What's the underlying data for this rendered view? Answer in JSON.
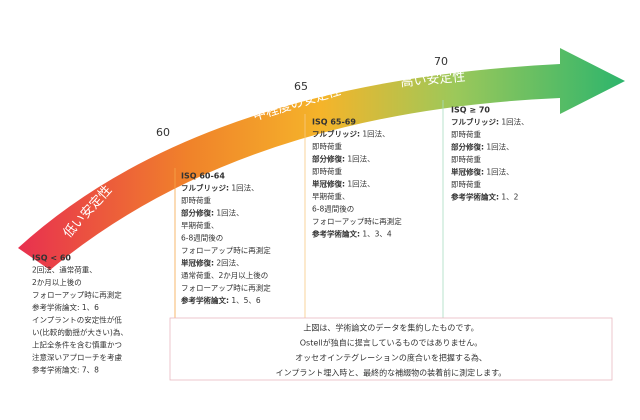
{
  "arrow": {
    "labels": [
      "低い安定性",
      "中程度の安定性",
      "高い安定性"
    ],
    "marks": [
      "60",
      "65",
      "70"
    ]
  },
  "columns": [
    {
      "title": "ISQ < 60",
      "lines": [
        {
          "text": "2回法、通常荷重、"
        },
        {
          "text": "2か月以上後の"
        },
        {
          "text": "フォローアップ時に再測定"
        },
        {
          "text": "参考学術論文: 1、6"
        },
        {
          "text": "インプラントの安定性が低"
        },
        {
          "text": "い(比較的動揺が大きい)為、"
        },
        {
          "text": "上記全条件を含む慎重かつ"
        },
        {
          "text": "注意深いアプローチを考慮"
        },
        {
          "text": "参考学術論文: 7、8"
        }
      ]
    },
    {
      "title": "ISQ 60-64",
      "lines": [
        {
          "label": "フルブリッジ:",
          "text": " 1回法、"
        },
        {
          "text": "即時荷重"
        },
        {
          "label": "部分修復:",
          "text": " 1回法、"
        },
        {
          "text": "早期荷重、"
        },
        {
          "text": "6-8週間後の"
        },
        {
          "text": "フォローアップ時に再測定"
        },
        {
          "label": "単冠修復:",
          "text": " 2回法、"
        },
        {
          "text": "通常荷重、2か月以上後の"
        },
        {
          "text": "フォローアップ時に再測定"
        },
        {
          "label": "参考学術論文:",
          "text": " 1、5、6"
        }
      ]
    },
    {
      "title": "ISQ 65-69",
      "lines": [
        {
          "label": "フルブリッジ:",
          "text": " 1回法、"
        },
        {
          "text": "即時荷重"
        },
        {
          "label": "部分修復:",
          "text": " 1回法、"
        },
        {
          "text": "即時荷重"
        },
        {
          "label": "単冠修復:",
          "text": " 1回法、"
        },
        {
          "text": "早期荷重、"
        },
        {
          "text": "6-8週間後の"
        },
        {
          "text": "フォローアップ時に再測定"
        },
        {
          "label": "参考学術論文:",
          "text": " 1、3、4"
        }
      ]
    },
    {
      "title": "ISQ ≥ 70",
      "lines": [
        {
          "label": "フルブリッジ:",
          "text": " 1回法、"
        },
        {
          "text": "即時荷重"
        },
        {
          "label": "部分修復:",
          "text": " 1回法、"
        },
        {
          "text": "即時荷重"
        },
        {
          "label": "単冠修復:",
          "text": " 1回法、"
        },
        {
          "text": "即時荷重"
        },
        {
          "label": "参考学術論文:",
          "text": " 1、2"
        }
      ]
    }
  ],
  "note": {
    "lines": [
      "上図は、学術論文のデータを集約したものです。",
      "Ostellが独自に提言しているものではありません。",
      "オッセオインテグレーションの度合いを把握する為、",
      "インプラント埋入時と、最終的な補綴物の装着前に測定します。"
    ]
  }
}
